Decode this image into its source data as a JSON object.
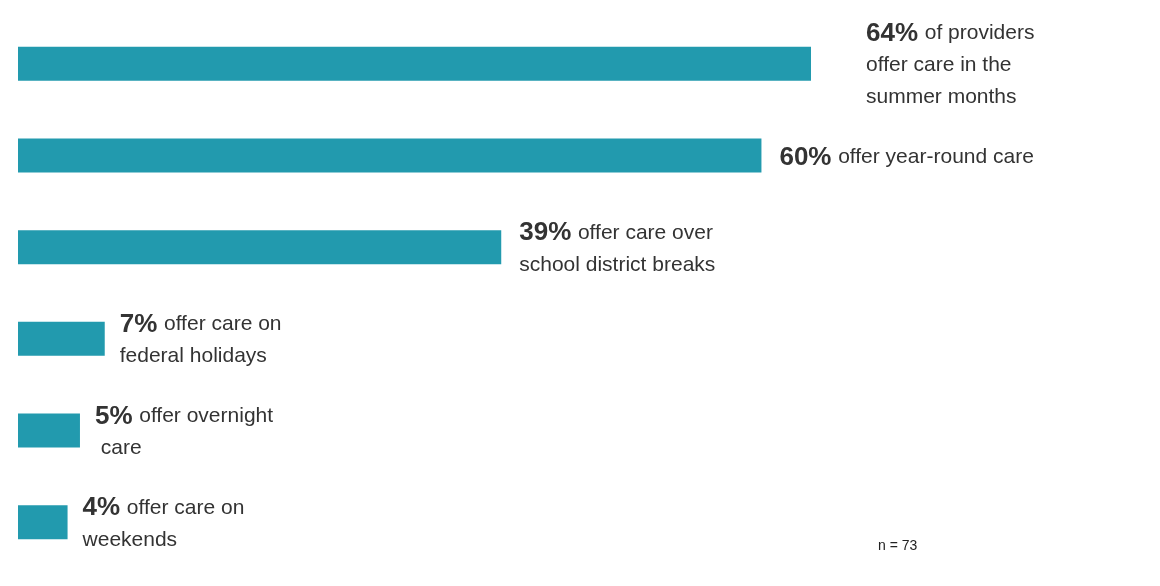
{
  "chart_data": {
    "type": "bar",
    "orientation": "horizontal",
    "categories": [
      null,
      null,
      null,
      null,
      null,
      null
    ],
    "values": [
      64,
      60,
      39,
      7,
      5,
      4
    ],
    "color": "#229aae",
    "value_labels": [
      "64% of providers offer care in the summer months",
      "60% offer year-round care",
      "39% offer care over school district breaks",
      "7% offer care on federal holidays",
      "5% offer overnight care",
      "4% offer care on weekends"
    ],
    "annotations": [
      "n = 73"
    ]
  }
}
